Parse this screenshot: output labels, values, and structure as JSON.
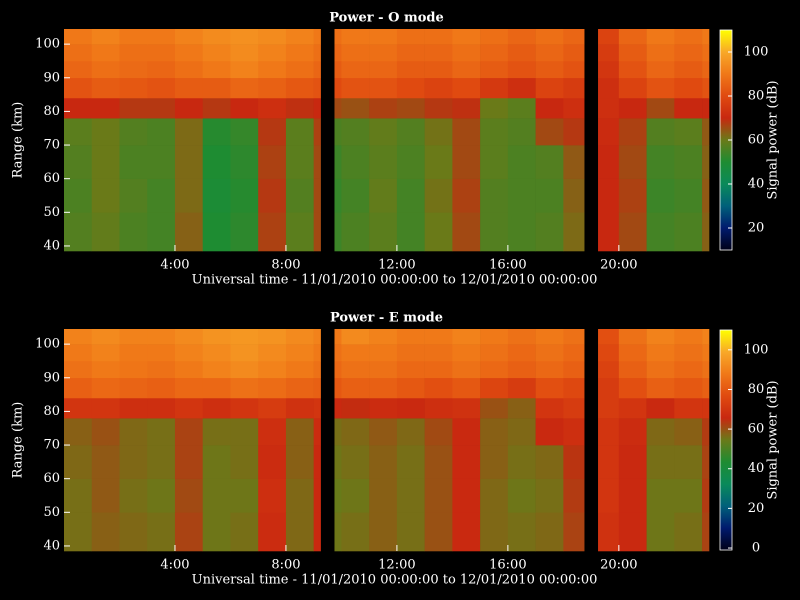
{
  "chart_data": [
    {
      "type": "heatmap",
      "title": "Power - O mode",
      "xlabel": "Universal time - 11/01/2010 00:00:00 to 12/01/2010 00:00:00",
      "ylabel": "Range (km)",
      "colorbar_label": "Signal power (dB)",
      "x_bins": [
        0,
        1,
        2,
        3,
        4,
        5,
        6,
        7,
        8,
        9,
        9.25,
        9.75,
        10,
        11,
        12,
        13,
        14,
        15,
        16,
        17,
        18,
        18.75,
        19.25,
        20,
        21,
        22,
        23,
        23.25
      ],
      "y_bins": [
        38.5,
        50,
        60,
        70,
        78,
        84,
        90,
        95,
        100,
        104.5
      ],
      "z": [
        [
          57,
          59,
          56,
          55,
          63,
          50,
          52,
          67,
          58,
          66,
          null,
          54,
          56,
          58,
          55,
          60,
          66,
          57,
          56,
          57,
          62,
          null,
          70,
          66,
          55,
          56,
          63
        ],
        [
          56,
          60,
          57,
          55,
          62,
          49,
          51,
          68,
          57,
          66,
          null,
          53,
          55,
          59,
          55,
          61,
          67,
          57,
          56,
          56,
          63,
          null,
          70,
          67,
          54,
          55,
          64
        ],
        [
          57,
          60,
          56,
          56,
          62,
          50,
          52,
          67,
          58,
          66,
          null,
          54,
          56,
          58,
          56,
          60,
          66,
          58,
          56,
          57,
          64,
          null,
          70,
          66,
          55,
          56,
          63
        ],
        [
          58,
          60,
          57,
          56,
          62,
          51,
          53,
          68,
          58,
          67,
          null,
          56,
          57,
          59,
          57,
          61,
          66,
          58,
          57,
          66,
          68,
          null,
          71,
          67,
          57,
          58,
          64
        ],
        [
          70,
          70,
          68,
          68,
          70,
          68,
          70,
          72,
          69,
          70,
          null,
          66,
          65,
          67,
          66,
          68,
          69,
          60,
          58,
          70,
          72,
          null,
          72,
          70,
          66,
          70,
          70
        ],
        [
          82,
          84,
          83,
          82,
          84,
          84,
          86,
          85,
          83,
          82,
          null,
          80,
          82,
          82,
          80,
          78,
          80,
          75,
          72,
          78,
          76,
          null,
          72,
          78,
          82,
          80,
          82
        ],
        [
          86,
          88,
          87,
          86,
          88,
          90,
          92,
          90,
          88,
          86,
          null,
          84,
          86,
          86,
          84,
          84,
          86,
          84,
          82,
          84,
          82,
          null,
          74,
          82,
          86,
          84,
          86
        ],
        [
          88,
          90,
          88,
          88,
          90,
          92,
          94,
          92,
          90,
          88,
          null,
          86,
          88,
          88,
          86,
          86,
          88,
          86,
          84,
          86,
          84,
          null,
          76,
          84,
          88,
          86,
          88
        ],
        [
          90,
          92,
          90,
          90,
          92,
          94,
          95,
          94,
          92,
          90,
          null,
          88,
          90,
          90,
          88,
          88,
          90,
          88,
          86,
          88,
          86,
          null,
          78,
          86,
          90,
          88,
          90
        ]
      ],
      "xlim": [
        0,
        23.25
      ],
      "ylim": [
        38.5,
        104.5
      ],
      "xticks": [
        {
          "value": 4,
          "label": "4:00"
        },
        {
          "value": 8,
          "label": "8:00"
        },
        {
          "value": 12,
          "label": "12:00"
        },
        {
          "value": 16,
          "label": "16:00"
        },
        {
          "value": 20,
          "label": "20:00"
        }
      ],
      "yticks": [
        40,
        50,
        60,
        70,
        80,
        90,
        100
      ],
      "clim": [
        10,
        110
      ],
      "cticks": [
        20,
        40,
        60,
        80,
        100
      ],
      "colormap": [
        "#000018",
        "#001a6e",
        "#00607a",
        "#0a8a5a",
        "#1e8c32",
        "#6a7a18",
        "#c82810",
        "#e04a10",
        "#f07818",
        "#f8a828",
        "#ffff00"
      ]
    },
    {
      "type": "heatmap",
      "title": "Power - E mode",
      "xlabel": "Universal time - 11/01/2010 00:00:00 to 12/01/2010 00:00:00",
      "ylabel": "Range (km)",
      "colorbar_label": "Signal power (dB)",
      "x_bins": [
        0,
        1,
        2,
        3,
        4,
        5,
        6,
        7,
        8,
        9,
        9.25,
        9.75,
        10,
        11,
        12,
        13,
        14,
        15,
        16,
        17,
        18,
        18.75,
        19.25,
        20,
        21,
        22,
        23,
        23.25
      ],
      "y_bins": [
        38.5,
        50,
        60,
        70,
        78,
        84,
        90,
        95,
        100,
        104.5
      ],
      "z": [
        [
          56,
          58,
          57,
          56,
          62,
          55,
          56,
          67,
          57,
          66,
          null,
          55,
          56,
          58,
          56,
          60,
          66,
          57,
          56,
          57,
          62,
          null,
          69,
          66,
          55,
          56,
          62
        ],
        [
          56,
          59,
          56,
          55,
          61,
          55,
          55,
          68,
          57,
          66,
          null,
          54,
          55,
          58,
          56,
          60,
          66,
          57,
          55,
          56,
          63,
          null,
          70,
          66,
          55,
          55,
          63
        ],
        [
          57,
          59,
          57,
          56,
          62,
          55,
          56,
          67,
          58,
          66,
          null,
          55,
          56,
          58,
          56,
          60,
          66,
          58,
          56,
          57,
          64,
          null,
          70,
          66,
          56,
          56,
          62
        ],
        [
          58,
          60,
          57,
          56,
          62,
          56,
          56,
          68,
          58,
          67,
          null,
          56,
          57,
          59,
          57,
          61,
          66,
          58,
          57,
          66,
          68,
          null,
          70,
          67,
          57,
          58,
          63
        ],
        [
          70,
          70,
          68,
          68,
          70,
          68,
          70,
          72,
          69,
          70,
          null,
          66,
          65,
          67,
          66,
          68,
          69,
          60,
          58,
          70,
          72,
          null,
          72,
          70,
          66,
          70,
          70
        ],
        [
          82,
          84,
          83,
          82,
          84,
          84,
          86,
          85,
          83,
          82,
          null,
          80,
          82,
          82,
          80,
          78,
          80,
          75,
          72,
          78,
          76,
          null,
          72,
          78,
          82,
          80,
          82
        ],
        [
          86,
          88,
          87,
          86,
          88,
          90,
          92,
          90,
          88,
          86,
          null,
          84,
          86,
          86,
          84,
          84,
          86,
          84,
          82,
          84,
          82,
          null,
          74,
          82,
          86,
          84,
          86
        ],
        [
          88,
          90,
          88,
          88,
          90,
          92,
          94,
          92,
          90,
          88,
          null,
          86,
          88,
          88,
          86,
          86,
          88,
          86,
          84,
          86,
          84,
          null,
          76,
          84,
          88,
          86,
          88
        ],
        [
          90,
          92,
          90,
          90,
          92,
          94,
          95,
          94,
          92,
          90,
          null,
          88,
          92,
          90,
          88,
          88,
          90,
          88,
          86,
          88,
          86,
          null,
          78,
          86,
          90,
          88,
          90
        ]
      ],
      "xlim": [
        0,
        23.25
      ],
      "ylim": [
        38.5,
        104.5
      ],
      "xticks": [
        {
          "value": 4,
          "label": "4:00"
        },
        {
          "value": 8,
          "label": "8:00"
        },
        {
          "value": 12,
          "label": "12:00"
        },
        {
          "value": 16,
          "label": "16:00"
        },
        {
          "value": 20,
          "label": "20:00"
        }
      ],
      "yticks": [
        40,
        50,
        60,
        70,
        80,
        90,
        100
      ],
      "clim": [
        -1,
        110
      ],
      "cticks": [
        0,
        20,
        40,
        60,
        80,
        100
      ],
      "colormap": [
        "#000018",
        "#001a6e",
        "#00607a",
        "#0a8a5a",
        "#1e8c32",
        "#6a7a18",
        "#c82810",
        "#e04a10",
        "#f07818",
        "#f8a828",
        "#ffff00"
      ]
    }
  ]
}
